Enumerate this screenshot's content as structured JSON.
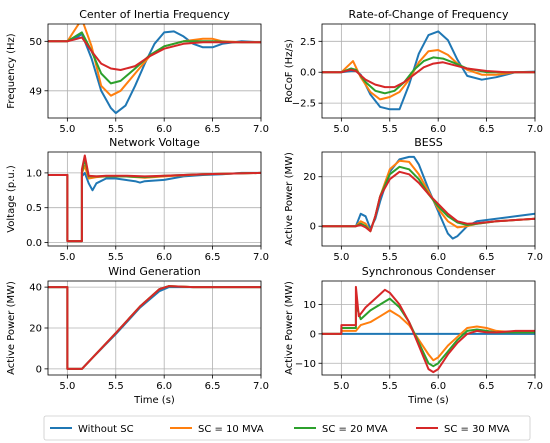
{
  "chart_data": [
    {
      "type": "line",
      "title": "Center of Inertia Frequency",
      "xlabel": "",
      "ylabel": "Frequency (Hz)",
      "xlim": [
        4.8,
        7.0
      ],
      "ylim": [
        48.45,
        50.35
      ],
      "xticks": [
        "5.0",
        "5.5",
        "6.0",
        "6.5",
        "7.0"
      ],
      "yticks": [
        "49",
        "50"
      ],
      "ytick_values": [
        49,
        50
      ],
      "grid": true,
      "series": [
        {
          "name": "Without SC",
          "x": [
            4.8,
            5.0,
            5.1,
            5.15,
            5.25,
            5.35,
            5.45,
            5.5,
            5.6,
            5.7,
            5.8,
            5.9,
            6.0,
            6.1,
            6.2,
            6.3,
            6.4,
            6.5,
            6.6,
            6.8,
            7.0
          ],
          "y": [
            50,
            50,
            50.08,
            50.15,
            49.65,
            49.0,
            48.65,
            48.55,
            48.7,
            49.1,
            49.55,
            49.95,
            50.18,
            50.2,
            50.1,
            49.95,
            49.88,
            49.88,
            49.95,
            50.0,
            49.98
          ]
        },
        {
          "name": "SC = 10 MVA",
          "x": [
            4.8,
            5.0,
            5.1,
            5.15,
            5.25,
            5.35,
            5.45,
            5.55,
            5.7,
            5.85,
            6.0,
            6.2,
            6.4,
            6.5,
            6.6,
            6.8,
            7.0
          ],
          "y": [
            50,
            50,
            50.3,
            50.45,
            49.9,
            49.1,
            48.9,
            49.0,
            49.35,
            49.7,
            49.9,
            50.0,
            50.05,
            50.05,
            50.0,
            49.98,
            49.98
          ]
        },
        {
          "name": "SC = 20 MVA",
          "x": [
            4.8,
            5.0,
            5.1,
            5.15,
            5.25,
            5.35,
            5.45,
            5.55,
            5.7,
            5.85,
            6.0,
            6.2,
            6.4,
            6.5,
            6.7,
            7.0
          ],
          "y": [
            50,
            50,
            50.12,
            50.18,
            49.8,
            49.35,
            49.15,
            49.2,
            49.45,
            49.72,
            49.9,
            50.0,
            50.0,
            50.0,
            49.98,
            49.98
          ]
        },
        {
          "name": "SC = 30 MVA",
          "x": [
            4.8,
            5.0,
            5.1,
            5.15,
            5.25,
            5.35,
            5.45,
            5.55,
            5.7,
            5.85,
            6.0,
            6.2,
            6.4,
            6.6,
            6.8,
            7.0
          ],
          "y": [
            50,
            50,
            50.05,
            50.08,
            49.8,
            49.55,
            49.45,
            49.42,
            49.5,
            49.7,
            49.85,
            49.95,
            49.98,
            49.98,
            49.98,
            49.98
          ]
        }
      ]
    },
    {
      "type": "line",
      "title": "Rate-of-Change of Frequency",
      "xlabel": "",
      "ylabel": "RoCoF (Hz/s)",
      "xlim": [
        4.8,
        7.0
      ],
      "ylim": [
        -3.7,
        3.9
      ],
      "xticks": [
        "5.0",
        "5.5",
        "6.0",
        "6.5",
        "7.0"
      ],
      "yticks": [
        "2.5",
        "0.0",
        "−2.5"
      ],
      "ytick_values": [
        2.5,
        0,
        -2.5
      ],
      "grid": true,
      "series": [
        {
          "name": "Without SC",
          "x": [
            4.8,
            5.0,
            5.1,
            5.15,
            5.2,
            5.3,
            5.4,
            5.5,
            5.6,
            5.7,
            5.8,
            5.9,
            6.0,
            6.1,
            6.2,
            6.3,
            6.45,
            6.6,
            6.8,
            7.0
          ],
          "y": [
            0,
            0,
            0.1,
            0.1,
            -0.2,
            -1.8,
            -2.8,
            -3.0,
            -3.0,
            -1.0,
            1.5,
            3.0,
            3.3,
            2.6,
            1.0,
            -0.3,
            -0.6,
            -0.4,
            0.0,
            0.05
          ]
        },
        {
          "name": "SC = 10 MVA",
          "x": [
            4.8,
            5.0,
            5.08,
            5.12,
            5.2,
            5.3,
            5.4,
            5.5,
            5.6,
            5.7,
            5.8,
            5.9,
            6.0,
            6.1,
            6.2,
            6.3,
            6.45,
            6.6,
            6.8,
            7.0
          ],
          "y": [
            0,
            0,
            0.6,
            0.9,
            -0.4,
            -1.6,
            -2.2,
            -2.0,
            -1.6,
            -0.6,
            0.8,
            1.7,
            1.8,
            1.4,
            0.7,
            0.2,
            -0.2,
            -0.2,
            0.0,
            0.0
          ]
        },
        {
          "name": "SC = 20 MVA",
          "x": [
            4.8,
            5.0,
            5.1,
            5.15,
            5.25,
            5.35,
            5.45,
            5.55,
            5.65,
            5.75,
            5.85,
            5.95,
            6.05,
            6.15,
            6.3,
            6.5,
            6.7,
            7.0
          ],
          "y": [
            0,
            0,
            0.3,
            0.2,
            -0.8,
            -1.5,
            -1.7,
            -1.5,
            -0.8,
            0.2,
            0.9,
            1.2,
            1.1,
            0.8,
            0.3,
            0.0,
            0.0,
            0.0
          ]
        },
        {
          "name": "SC = 30 MVA",
          "x": [
            4.8,
            5.0,
            5.1,
            5.15,
            5.25,
            5.35,
            5.45,
            5.55,
            5.65,
            5.75,
            5.85,
            5.95,
            6.05,
            6.15,
            6.3,
            6.5,
            6.7,
            7.0
          ],
          "y": [
            0,
            0,
            0.2,
            0.1,
            -0.6,
            -1.0,
            -1.2,
            -1.2,
            -0.8,
            -0.2,
            0.4,
            0.7,
            0.8,
            0.6,
            0.3,
            0.1,
            0.0,
            0.0
          ]
        }
      ]
    },
    {
      "type": "line",
      "title": "Network Voltage",
      "xlabel": "",
      "ylabel": "Voltage (p.u.)",
      "xlim": [
        4.8,
        7.0
      ],
      "ylim": [
        -0.05,
        1.3
      ],
      "xticks": [
        "5.0",
        "5.5",
        "6.0",
        "6.5",
        "7.0"
      ],
      "yticks": [
        "1.0",
        "0.5",
        "0.0"
      ],
      "ytick_values": [
        1.0,
        0.5,
        0.0
      ],
      "grid": true,
      "series": [
        {
          "name": "Without SC",
          "x": [
            4.8,
            5.0,
            5.0,
            5.15,
            5.15,
            5.18,
            5.22,
            5.26,
            5.3,
            5.4,
            5.5,
            5.6,
            5.7,
            5.75,
            5.8,
            6.0,
            6.2,
            6.4,
            6.6,
            6.8,
            7.0
          ],
          "y": [
            0.97,
            0.97,
            0.02,
            0.02,
            0.95,
            1.0,
            0.85,
            0.75,
            0.85,
            0.92,
            0.92,
            0.9,
            0.88,
            0.86,
            0.88,
            0.9,
            0.95,
            0.97,
            0.98,
            1.0,
            1.0
          ]
        },
        {
          "name": "SC = 10 MVA",
          "x": [
            4.8,
            5.0,
            5.0,
            5.15,
            5.15,
            5.18,
            5.22,
            5.3,
            5.4,
            5.6,
            5.8,
            6.0,
            6.4,
            7.0
          ],
          "y": [
            0.97,
            0.97,
            0.02,
            0.02,
            1.0,
            1.1,
            0.92,
            0.94,
            0.95,
            0.95,
            0.93,
            0.95,
            0.98,
            1.0
          ]
        },
        {
          "name": "SC = 20 MVA",
          "x": [
            4.8,
            5.0,
            5.0,
            5.15,
            5.15,
            5.18,
            5.22,
            5.3,
            5.4,
            5.6,
            5.8,
            6.0,
            6.4,
            7.0
          ],
          "y": [
            0.97,
            0.97,
            0.02,
            0.02,
            1.0,
            1.2,
            0.95,
            0.95,
            0.95,
            0.95,
            0.94,
            0.96,
            0.98,
            1.0
          ]
        },
        {
          "name": "SC = 30 MVA",
          "x": [
            4.8,
            5.0,
            5.0,
            5.15,
            5.15,
            5.18,
            5.22,
            5.3,
            5.4,
            5.6,
            5.8,
            6.0,
            6.4,
            7.0
          ],
          "y": [
            0.97,
            0.97,
            0.02,
            0.02,
            1.05,
            1.25,
            0.96,
            0.95,
            0.96,
            0.96,
            0.95,
            0.96,
            0.98,
            1.0
          ]
        }
      ]
    },
    {
      "type": "line",
      "title": "BESS",
      "xlabel": "",
      "ylabel": "Active Power (MW)",
      "xlim": [
        4.8,
        7.0
      ],
      "ylim": [
        -8,
        30
      ],
      "xticks": [
        "5.0",
        "5.5",
        "6.0",
        "6.5",
        "7.0"
      ],
      "yticks": [
        "20",
        "0"
      ],
      "ytick_values": [
        20,
        0
      ],
      "grid": true,
      "series": [
        {
          "name": "Without SC",
          "x": [
            4.8,
            5.15,
            5.2,
            5.25,
            5.3,
            5.35,
            5.4,
            5.5,
            5.6,
            5.7,
            5.75,
            5.8,
            5.9,
            6.0,
            6.1,
            6.15,
            6.2,
            6.3,
            6.4,
            6.6,
            6.8,
            7.0
          ],
          "y": [
            0,
            0,
            5,
            4,
            -1,
            3,
            10,
            22,
            27,
            28,
            28,
            25,
            15,
            6,
            -3,
            -5,
            -4,
            0,
            2,
            3,
            4,
            5
          ]
        },
        {
          "name": "SC = 10 MVA",
          "x": [
            4.8,
            5.15,
            5.2,
            5.25,
            5.3,
            5.35,
            5.4,
            5.5,
            5.6,
            5.7,
            5.8,
            5.9,
            6.0,
            6.1,
            6.2,
            6.3,
            6.4,
            6.6,
            6.8,
            7.0
          ],
          "y": [
            0,
            0,
            2,
            1,
            -2,
            4,
            12,
            23,
            26.5,
            26,
            21,
            14,
            7,
            2,
            -0.5,
            0,
            1,
            2,
            2.5,
            3
          ]
        },
        {
          "name": "SC = 20 MVA",
          "x": [
            4.8,
            5.15,
            5.2,
            5.25,
            5.3,
            5.35,
            5.4,
            5.5,
            5.6,
            5.7,
            5.8,
            5.9,
            6.0,
            6.1,
            6.2,
            6.3,
            6.4,
            6.6,
            6.8,
            7.0
          ],
          "y": [
            0,
            0,
            1,
            0,
            -2,
            4,
            12,
            21,
            24,
            23,
            19,
            13,
            8,
            4,
            1.5,
            0.5,
            1,
            2,
            2.5,
            3
          ]
        },
        {
          "name": "SC = 30 MVA",
          "x": [
            4.8,
            5.15,
            5.2,
            5.25,
            5.3,
            5.35,
            5.4,
            5.5,
            5.6,
            5.7,
            5.8,
            5.9,
            6.0,
            6.1,
            6.2,
            6.3,
            6.4,
            6.6,
            6.8,
            7.0
          ],
          "y": [
            0,
            0,
            0.5,
            -0.5,
            -2,
            4,
            12,
            19,
            22,
            21,
            17.5,
            13,
            9,
            5,
            2,
            1,
            1.2,
            2,
            2.5,
            3
          ]
        }
      ]
    },
    {
      "type": "line",
      "title": "Wind Generation",
      "xlabel": "",
      "ylabel": "Active Power (MW)",
      "xlim": [
        4.8,
        7.0
      ],
      "ylim": [
        -3,
        43
      ],
      "xticks": [
        "5.0",
        "5.5",
        "6.0",
        "6.5",
        "7.0"
      ],
      "yticks": [
        "40",
        "20",
        "0"
      ],
      "ytick_values": [
        40,
        20,
        0
      ],
      "grid": true,
      "series": [
        {
          "name": "Without SC",
          "x": [
            4.8,
            5.0,
            5.0,
            5.15,
            5.25,
            5.5,
            5.75,
            5.95,
            6.05,
            6.3,
            7.0
          ],
          "y": [
            40,
            40,
            0,
            0,
            5,
            17,
            30,
            38,
            40,
            40,
            40
          ]
        },
        {
          "name": "SC = 10 MVA",
          "x": [
            4.8,
            5.0,
            5.0,
            5.15,
            5.25,
            5.5,
            5.75,
            5.95,
            6.05,
            6.3,
            7.0
          ],
          "y": [
            40,
            40,
            0,
            0,
            5,
            17.5,
            30.5,
            39,
            40.5,
            40,
            40
          ]
        },
        {
          "name": "SC = 20 MVA",
          "x": [
            4.8,
            5.0,
            5.0,
            5.15,
            5.25,
            5.5,
            5.75,
            5.95,
            6.05,
            6.3,
            7.0
          ],
          "y": [
            40,
            40,
            0,
            0,
            5,
            17.5,
            30.5,
            39,
            40.5,
            40,
            40
          ]
        },
        {
          "name": "SC = 30 MVA",
          "x": [
            4.8,
            5.0,
            5.0,
            5.15,
            5.25,
            5.5,
            5.75,
            5.95,
            6.05,
            6.3,
            7.0
          ],
          "y": [
            40,
            40,
            0,
            0,
            5,
            17.5,
            30.5,
            39,
            40.5,
            40,
            40
          ]
        }
      ]
    },
    {
      "type": "line",
      "title": "Synchronous Condenser",
      "xlabel": "Time (s)",
      "ylabel": "Active Power (MW)",
      "xlim": [
        4.8,
        7.0
      ],
      "ylim": [
        -14,
        18
      ],
      "xticks": [
        "5.0",
        "5.5",
        "6.0",
        "6.5",
        "7.0"
      ],
      "yticks": [
        "10",
        "0",
        "−10"
      ],
      "ytick_values": [
        10,
        0,
        -10
      ],
      "grid": true,
      "series": [
        {
          "name": "Without SC",
          "x": [
            4.8,
            7.0
          ],
          "y": [
            0,
            0
          ]
        },
        {
          "name": "SC = 10 MVA",
          "x": [
            4.8,
            5.0,
            5.0,
            5.15,
            5.2,
            5.3,
            5.4,
            5.5,
            5.6,
            5.7,
            5.8,
            5.9,
            5.95,
            6.0,
            6.1,
            6.2,
            6.3,
            6.4,
            6.5,
            6.6,
            6.8,
            7.0
          ],
          "y": [
            0,
            0,
            1,
            1,
            3,
            4,
            6,
            8,
            6,
            3,
            -2,
            -7,
            -9,
            -8,
            -4,
            -1,
            2,
            2.5,
            2,
            1,
            0.5,
            0.5
          ]
        },
        {
          "name": "SC = 20 MVA",
          "x": [
            4.8,
            5.0,
            5.0,
            5.15,
            5.15,
            5.2,
            5.3,
            5.4,
            5.5,
            5.6,
            5.7,
            5.8,
            5.9,
            5.95,
            6.0,
            6.1,
            6.2,
            6.3,
            6.4,
            6.5,
            6.6,
            6.8,
            7.0
          ],
          "y": [
            0,
            0,
            2,
            2,
            10,
            5,
            8,
            10,
            12,
            9,
            4,
            -3,
            -10,
            -11,
            -10,
            -6,
            -2,
            1,
            1.5,
            1,
            0.5,
            0.5,
            0.5
          ]
        },
        {
          "name": "SC = 30 MVA",
          "x": [
            4.8,
            5.0,
            5.0,
            5.15,
            5.15,
            5.18,
            5.25,
            5.35,
            5.45,
            5.5,
            5.6,
            5.7,
            5.8,
            5.9,
            5.95,
            6.0,
            6.1,
            6.2,
            6.3,
            6.4,
            6.5,
            6.6,
            6.8,
            7.0
          ],
          "y": [
            0,
            0,
            3,
            3,
            16,
            6,
            9,
            12,
            15,
            14,
            10,
            4,
            -4,
            -12,
            -13,
            -12,
            -7,
            -3,
            0,
            1,
            0.5,
            0.5,
            1,
            1
          ]
        }
      ]
    }
  ],
  "legend": {
    "items": [
      {
        "label": "Without SC",
        "color": "#1f77b4"
      },
      {
        "label": "SC = 10 MVA",
        "color": "#ff7f0e"
      },
      {
        "label": "SC = 20 MVA",
        "color": "#2ca02c"
      },
      {
        "label": "SC = 30 MVA",
        "color": "#d62728"
      }
    ],
    "placement": "bottom"
  },
  "colors": [
    "#1f77b4",
    "#ff7f0e",
    "#2ca02c",
    "#d62728"
  ]
}
